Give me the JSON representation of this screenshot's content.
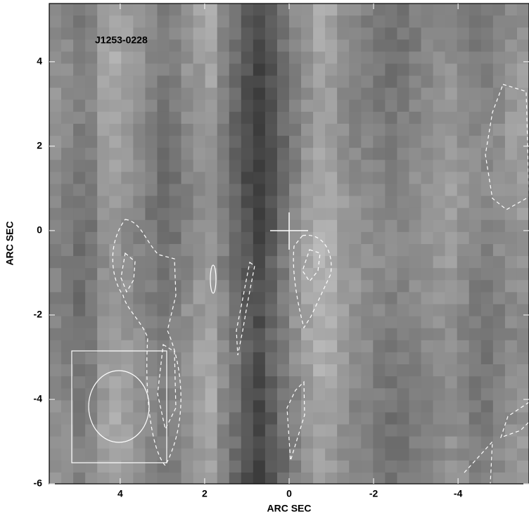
{
  "chart_data": {
    "type": "image",
    "title": "J1253-0228",
    "xlabel": "ARC SEC",
    "ylabel": "ARC SEC",
    "xlim": [
      5.68,
      -5.68
    ],
    "ylim": [
      -6,
      5.38
    ],
    "xticks": [
      4,
      2,
      0,
      -2,
      -4
    ],
    "yticks": [
      4,
      2,
      0,
      -2,
      -4,
      -6
    ],
    "grid": false
  }
}
